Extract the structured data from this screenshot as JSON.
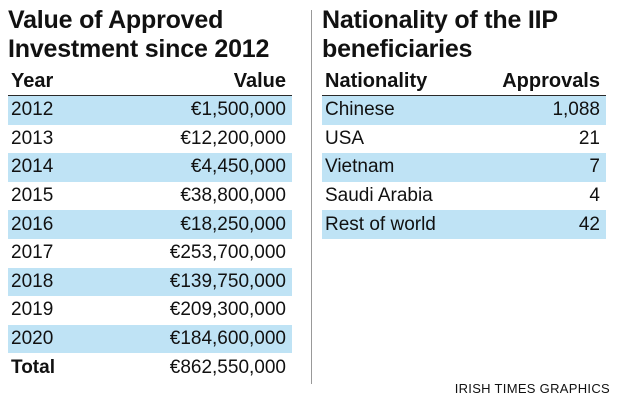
{
  "chart_data": [
    {
      "type": "table",
      "title": "Value of Approved Investment since 2012",
      "columns": [
        "Year",
        "Value"
      ],
      "rows": [
        {
          "label": "2012",
          "value": "€1,500,000"
        },
        {
          "label": "2013",
          "value": "€12,200,000"
        },
        {
          "label": "2014",
          "value": "€4,450,000"
        },
        {
          "label": "2015",
          "value": "€38,800,000"
        },
        {
          "label": "2016",
          "value": "€18,250,000"
        },
        {
          "label": "2017",
          "value": "€253,700,000"
        },
        {
          "label": "2018",
          "value": "€139,750,000"
        },
        {
          "label": "2019",
          "value": "€209,300,000"
        },
        {
          "label": "2020",
          "value": "€184,600,000"
        }
      ],
      "total": {
        "label": "Total",
        "value": "€862,550,000"
      }
    },
    {
      "type": "table",
      "title": "Nationality of the IIP beneficiaries",
      "columns": [
        "Nationality",
        "Approvals"
      ],
      "rows": [
        {
          "label": "Chinese",
          "value": "1,088"
        },
        {
          "label": "USA",
          "value": "21"
        },
        {
          "label": "Vietnam",
          "value": "7"
        },
        {
          "label": "Saudi Arabia",
          "value": "4"
        },
        {
          "label": "Rest of world",
          "value": "42"
        }
      ]
    }
  ],
  "credit": "IRISH TIMES GRAPHICS",
  "colors": {
    "row_shade": "#bfe3f5",
    "text": "#111111",
    "divider": "#999999"
  }
}
